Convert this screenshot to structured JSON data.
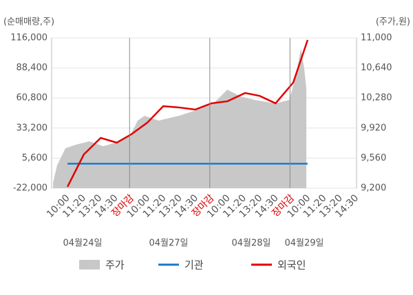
{
  "chart_data": {
    "type": "line",
    "y_axis_label": "(순매매량,주)",
    "y2_axis_label": "(주가,원)",
    "categories": [
      "10:00",
      "11:20",
      "13:20",
      "14:30",
      "장마감",
      "10:00",
      "11:20",
      "13:20",
      "14:30",
      "장마감",
      "10:00",
      "11:20",
      "13:20",
      "14:30",
      "장마감",
      "10:00",
      "11:20",
      "13:20",
      "14:30"
    ],
    "dates": [
      "04월24일",
      "04월27일",
      "04월28일",
      "04월29일"
    ],
    "xlim": [
      -0.86,
      18.15
    ],
    "ylim": [
      -22000,
      116000
    ],
    "yticks": [
      {
        "value": -22000,
        "label": "-22,000"
      },
      {
        "value": 5600,
        "label": "5,600"
      },
      {
        "value": 33200,
        "label": "33,200"
      },
      {
        "value": 60800,
        "label": "60,800"
      },
      {
        "value": 88400,
        "label": "88,400"
      },
      {
        "value": 116000,
        "label": "116,000"
      }
    ],
    "y2lim": [
      9200,
      11000
    ],
    "y2ticks": [
      {
        "value": 9200,
        "label": "9,200"
      },
      {
        "value": 9560,
        "label": "9,560"
      },
      {
        "value": 9920,
        "label": "9,920"
      },
      {
        "value": 10280,
        "label": "10,280"
      },
      {
        "value": 10640,
        "label": "10,640"
      },
      {
        "value": 11000,
        "label": "11,000"
      }
    ],
    "grid": true,
    "series": [
      {
        "name": "주가",
        "color": "#c8c8c8",
        "axis": "y2",
        "kind": "area",
        "x": [
          -0.77,
          -0.52,
          0,
          0.64,
          1.5,
          2.36,
          3.43,
          4.08,
          4.5,
          4.94,
          5.8,
          7.08,
          8.37,
          9.23,
          10.09,
          10.94,
          11.8,
          13.09,
          13.95,
          14.38,
          14.68,
          14.89,
          15.02
        ],
        "values": [
          9266,
          9472,
          9678,
          9720,
          9761,
          9703,
          9761,
          9844,
          10009,
          10067,
          10009,
          10067,
          10149,
          10215,
          10380,
          10298,
          10257,
          10215,
          10257,
          10546,
          10876,
          10628,
          10397
        ]
      },
      {
        "name": "기관",
        "color": "#1a78c8",
        "kind": "line",
        "x": [
          0.13,
          15.1
        ],
        "values": [
          500,
          500
        ]
      },
      {
        "name": "외국인",
        "color": "#e00000",
        "kind": "line",
        "x": [
          0.13,
          1.15,
          2.2,
          3.2,
          4.1,
          5.1,
          6.1,
          7.1,
          8.1,
          9.1,
          10.1,
          11.2,
          12.1,
          13.1,
          14.2,
          15.1
        ],
        "values": [
          -20700,
          9000,
          24200,
          19800,
          27400,
          38100,
          53300,
          52100,
          50200,
          55900,
          57800,
          65400,
          62800,
          55900,
          74900,
          114100
        ]
      }
    ]
  }
}
